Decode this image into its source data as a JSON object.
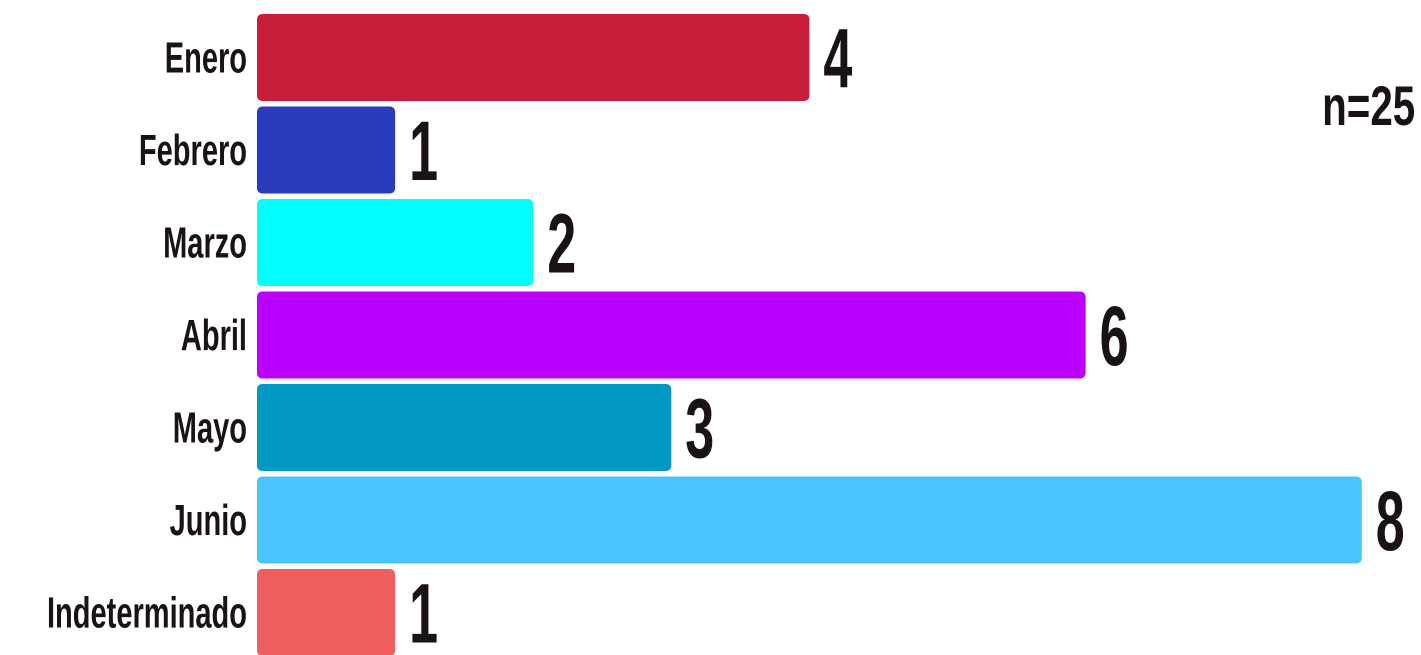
{
  "chart_data": {
    "type": "bar",
    "orientation": "horizontal",
    "categories": [
      "Enero",
      "Febrero",
      "Marzo",
      "Abril",
      "Mayo",
      "Junio",
      "Indeterminado"
    ],
    "values": [
      4,
      1,
      2,
      6,
      3,
      8,
      1
    ],
    "colors": [
      "#c81e3c",
      "#2b3bbf",
      "#00ffff",
      "#bb00ff",
      "#0198c3",
      "#4bc4fc",
      "#ee5f5e"
    ],
    "annotation": "n=25",
    "title": "",
    "xlabel": "",
    "ylabel": "",
    "xlim": [
      0,
      8
    ],
    "grid": false,
    "data_labels": true
  }
}
